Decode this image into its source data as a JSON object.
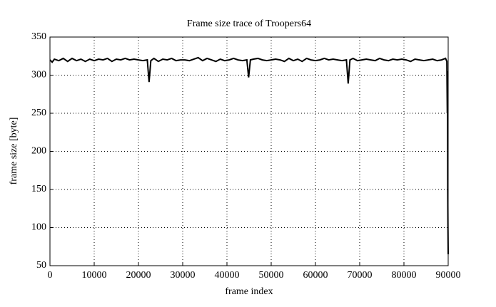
{
  "chart_data": {
    "type": "line",
    "title": "Frame size trace of Troopers64",
    "x_label": "frame index",
    "y_label": "frame size [byte]",
    "x": [
      0,
      500,
      1000,
      2000,
      3000,
      4000,
      5000,
      6000,
      7000,
      8000,
      9000,
      10000,
      11000,
      12000,
      13000,
      14000,
      15000,
      16000,
      17000,
      18000,
      19000,
      20000,
      21000,
      22000,
      22400,
      22800,
      23500,
      24500,
      25500,
      26500,
      27500,
      28500,
      29500,
      30500,
      31500,
      32500,
      33500,
      34500,
      35500,
      36500,
      37500,
      38500,
      39500,
      40500,
      41500,
      42500,
      43500,
      44500,
      44900,
      45300,
      46000,
      47000,
      48000,
      49000,
      50000,
      51000,
      52000,
      53000,
      54000,
      55000,
      56000,
      57000,
      58000,
      59000,
      60000,
      61000,
      62000,
      63000,
      64000,
      65000,
      66000,
      67000,
      67400,
      67800,
      68500,
      69500,
      70500,
      71500,
      72500,
      73500,
      74500,
      75500,
      76500,
      77500,
      78500,
      79500,
      80500,
      81500,
      82500,
      83500,
      84500,
      85500,
      86500,
      87500,
      88500,
      89400,
      89700,
      89800,
      89850,
      89900,
      89950,
      90000
    ],
    "series": [
      {
        "color": "#000000",
        "values": [
          320,
          317,
          321,
          319,
          322,
          318,
          322,
          319,
          321,
          318,
          321,
          319,
          321,
          320,
          322,
          318,
          321,
          320,
          322,
          320,
          321,
          320,
          319,
          320,
          291,
          319,
          322,
          318,
          321,
          320,
          322,
          319,
          320,
          320,
          319,
          321,
          323,
          319,
          322,
          320,
          318,
          321,
          319,
          320,
          322,
          320,
          319,
          320,
          297,
          320,
          321,
          322,
          320,
          319,
          320,
          321,
          320,
          318,
          322,
          319,
          321,
          318,
          322,
          320,
          319,
          320,
          322,
          320,
          321,
          320,
          319,
          320,
          289,
          320,
          322,
          319,
          320,
          321,
          320,
          319,
          322,
          320,
          319,
          321,
          320,
          321,
          320,
          318,
          321,
          320,
          319,
          320,
          321,
          319,
          320,
          322,
          318,
          250,
          305,
          150,
          100,
          65
        ]
      }
    ],
    "xlim": [
      0,
      90000
    ],
    "ylim": [
      50,
      350
    ],
    "xticks": [
      0,
      10000,
      20000,
      30000,
      40000,
      50000,
      60000,
      70000,
      80000,
      90000
    ],
    "yticks": [
      50,
      100,
      150,
      200,
      250,
      300,
      350
    ],
    "grid": true
  }
}
